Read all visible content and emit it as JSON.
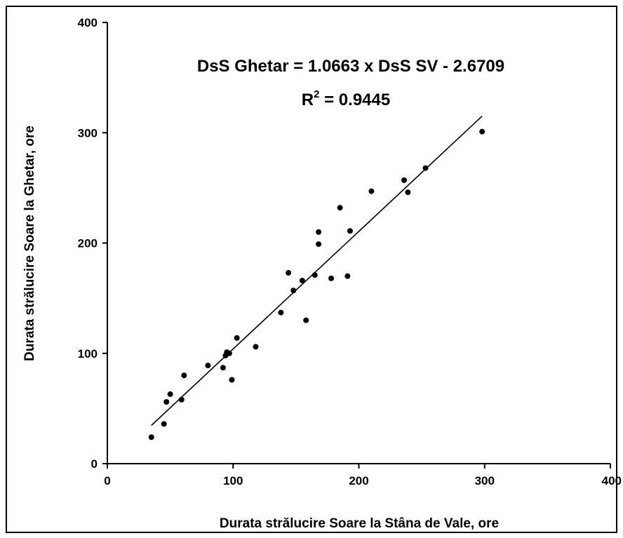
{
  "chart_data": {
    "type": "scatter",
    "title": "",
    "xlabel": "Durata strălucire Soare la Stâna de Vale, ore",
    "ylabel": "Durata strălucire Soare la Ghetar, ore",
    "xlim": [
      0,
      400
    ],
    "ylim": [
      0,
      400
    ],
    "xticks": [
      "0",
      "100",
      "200",
      "300",
      "400"
    ],
    "yticks": [
      "0",
      "100",
      "200",
      "300",
      "400"
    ],
    "grid": false,
    "legend": "none",
    "series": [
      {
        "points": [
          {
            "x": 35,
            "y": 24
          },
          {
            "x": 45,
            "y": 36
          },
          {
            "x": 47,
            "y": 56
          },
          {
            "x": 50,
            "y": 63
          },
          {
            "x": 59,
            "y": 58
          },
          {
            "x": 61,
            "y": 80
          },
          {
            "x": 80,
            "y": 89
          },
          {
            "x": 92,
            "y": 87
          },
          {
            "x": 94,
            "y": 98
          },
          {
            "x": 95,
            "y": 101
          },
          {
            "x": 97,
            "y": 100
          },
          {
            "x": 99,
            "y": 76
          },
          {
            "x": 103,
            "y": 114
          },
          {
            "x": 118,
            "y": 106
          },
          {
            "x": 138,
            "y": 137
          },
          {
            "x": 144,
            "y": 173
          },
          {
            "x": 148,
            "y": 157
          },
          {
            "x": 155,
            "y": 166
          },
          {
            "x": 158,
            "y": 130
          },
          {
            "x": 165,
            "y": 171
          },
          {
            "x": 168,
            "y": 199
          },
          {
            "x": 168,
            "y": 210
          },
          {
            "x": 178,
            "y": 168
          },
          {
            "x": 185,
            "y": 232
          },
          {
            "x": 191,
            "y": 170
          },
          {
            "x": 193,
            "y": 211
          },
          {
            "x": 210,
            "y": 247
          },
          {
            "x": 236,
            "y": 257
          },
          {
            "x": 239,
            "y": 246
          },
          {
            "x": 253,
            "y": 268
          },
          {
            "x": 298,
            "y": 301
          }
        ]
      }
    ],
    "trendline": {
      "slope": 1.0663,
      "intercept": -2.6709,
      "x_range": [
        35,
        298
      ],
      "equation": "DsS Ghetar = 1.0663 x DsS SV - 2.6709",
      "r2_label": "R",
      "r2_sup": "2",
      "r2_value": " = 0.9445"
    },
    "colors": {
      "points": "#000000",
      "line": "#000000",
      "axes": "#000000"
    }
  }
}
